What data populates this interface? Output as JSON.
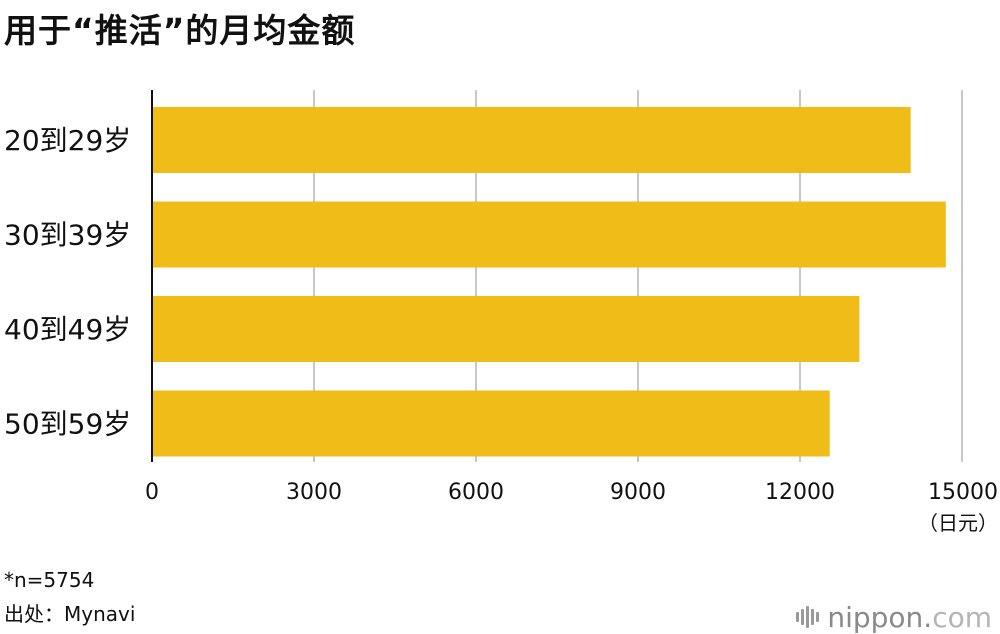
{
  "title": "用于“推活”的月均金额",
  "chart_data": {
    "type": "bar",
    "orientation": "horizontal",
    "title": "用于“推活”的月均金额",
    "categories": [
      "20到29岁",
      "30到39岁",
      "40到49岁",
      "50到59岁"
    ],
    "values": [
      14050,
      14700,
      13100,
      12550
    ],
    "xlim": [
      0,
      15000
    ],
    "xticks": [
      0,
      3000,
      6000,
      9000,
      12000,
      15000
    ],
    "unit": "（日元）",
    "grid": true,
    "bar_color": "#F0BC17"
  },
  "notes": {
    "sample": "*n=5754",
    "source": "出处：Mynavi"
  },
  "brand": {
    "name": "nippon",
    "dot": ".",
    "tld": "com"
  },
  "colors": {
    "bar": "#F0BC17",
    "grid": "#c8c8c8",
    "axis": "#111111"
  }
}
